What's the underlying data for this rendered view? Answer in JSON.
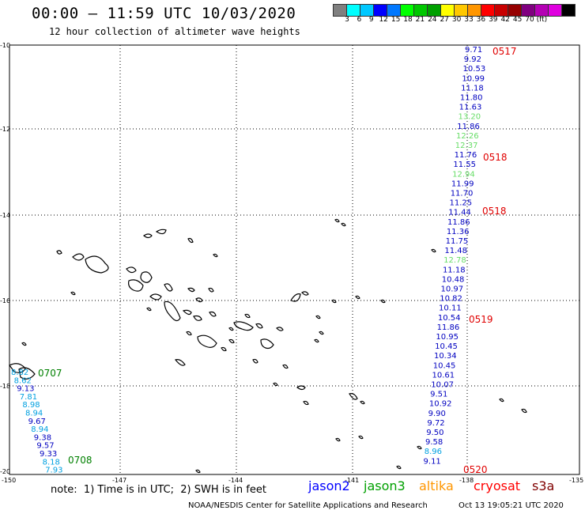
{
  "title": "00:00 – 11:59 UTC 10/03/2020",
  "subtitle": "12 hour collection of altimeter wave heights",
  "colorbar": {
    "colors": [
      "#808080",
      "#00ffff",
      "#00c8ff",
      "#0000ff",
      "#0078ff",
      "#00ff00",
      "#00c800",
      "#00a000",
      "#ffff00",
      "#ffc800",
      "#ff9600",
      "#ff0000",
      "#c80000",
      "#960000",
      "#800080",
      "#b400b4",
      "#e000e0",
      "#000000"
    ],
    "labels": [
      "3",
      "6",
      "9",
      "12",
      "15",
      "18",
      "21",
      "24",
      "27",
      "30",
      "33",
      "36",
      "39",
      "42",
      "45",
      "70",
      "(ft)"
    ]
  },
  "axes": {
    "lat_labels": [
      "-10",
      "-12",
      "-14",
      "-16",
      "-18",
      "-20"
    ],
    "lon_labels": [
      "-150",
      "-147",
      "-144",
      "-141",
      "-138",
      "-135"
    ]
  },
  "tracks": [
    {
      "name": "east-track",
      "values": [
        {
          "v": "9.71",
          "c": "#0000c0"
        },
        {
          "v": "9.92",
          "c": "#0000c0"
        },
        {
          "v": "10.53",
          "c": "#0000c0"
        },
        {
          "v": "10.99",
          "c": "#0000c0"
        },
        {
          "v": "11.18",
          "c": "#0000c0"
        },
        {
          "v": "11.80",
          "c": "#0000c0"
        },
        {
          "v": "11.63",
          "c": "#0000c0"
        },
        {
          "v": "13.20",
          "c": "#66dd66"
        },
        {
          "v": "11.86",
          "c": "#0000c0"
        },
        {
          "v": "12.26",
          "c": "#66dd66"
        },
        {
          "v": "12.37",
          "c": "#66dd66"
        },
        {
          "v": "11.76",
          "c": "#0000c0"
        },
        {
          "v": "11.55",
          "c": "#0000c0"
        },
        {
          "v": "12.94",
          "c": "#66dd66"
        },
        {
          "v": "11.99",
          "c": "#0000c0"
        },
        {
          "v": "11.70",
          "c": "#0000c0"
        },
        {
          "v": "11.25",
          "c": "#0000c0"
        },
        {
          "v": "11.44",
          "c": "#0000c0"
        },
        {
          "v": "11.86",
          "c": "#0000c0"
        },
        {
          "v": "11.36",
          "c": "#0000c0"
        },
        {
          "v": "11.75",
          "c": "#0000c0"
        },
        {
          "v": "11.48",
          "c": "#0000c0"
        },
        {
          "v": "12.78",
          "c": "#66dd66"
        },
        {
          "v": "11.18",
          "c": "#0000c0"
        },
        {
          "v": "10.48",
          "c": "#0000c0"
        },
        {
          "v": "10.97",
          "c": "#0000c0"
        },
        {
          "v": "10.82",
          "c": "#0000c0"
        },
        {
          "v": "10.11",
          "c": "#0000c0"
        },
        {
          "v": "10.54",
          "c": "#0000c0"
        },
        {
          "v": "11.86",
          "c": "#0000c0"
        },
        {
          "v": "10.95",
          "c": "#0000c0"
        },
        {
          "v": "10.45",
          "c": "#0000c0"
        },
        {
          "v": "10.34",
          "c": "#0000c0"
        },
        {
          "v": "10.45",
          "c": "#0000c0"
        },
        {
          "v": "10.61",
          "c": "#0000c0"
        },
        {
          "v": "10.07",
          "c": "#0000c0"
        },
        {
          "v": "9.51",
          "c": "#0000c0"
        },
        {
          "v": "10.92",
          "c": "#0000c0"
        },
        {
          "v": "9.90",
          "c": "#0000c0"
        },
        {
          "v": "9.72",
          "c": "#0000c0"
        },
        {
          "v": "9.50",
          "c": "#0000c0"
        },
        {
          "v": "9.58",
          "c": "#0000c0"
        },
        {
          "v": "8.96",
          "c": "#00a0e0"
        },
        {
          "v": "9.11",
          "c": "#0000c0"
        }
      ]
    },
    {
      "name": "west-track",
      "values": [
        {
          "v": "8.82",
          "c": "#00a0e0"
        },
        {
          "v": "8.62",
          "c": "#00a0e0"
        },
        {
          "v": "9.13",
          "c": "#0000c0"
        },
        {
          "v": "7.81",
          "c": "#00a0e0"
        },
        {
          "v": "8.98",
          "c": "#00a0e0"
        },
        {
          "v": "8.94",
          "c": "#00a0e0"
        },
        {
          "v": "9.67",
          "c": "#0000c0"
        },
        {
          "v": "8.94",
          "c": "#00a0e0"
        },
        {
          "v": "9.38",
          "c": "#0000c0"
        },
        {
          "v": "9.57",
          "c": "#0000c0"
        },
        {
          "v": "9.33",
          "c": "#0000c0"
        },
        {
          "v": "8.18",
          "c": "#00a0e0"
        },
        {
          "v": "7.93",
          "c": "#00a0e0"
        }
      ]
    }
  ],
  "pass_times": [
    {
      "t": "0517",
      "c": "#e00000"
    },
    {
      "t": "0518",
      "c": "#e00000"
    },
    {
      "t": "0518",
      "c": "#e00000"
    },
    {
      "t": "0519",
      "c": "#e00000"
    },
    {
      "t": "0520",
      "c": "#e00000"
    },
    {
      "t": "0707",
      "c": "#008000"
    },
    {
      "t": "0708",
      "c": "#008000"
    }
  ],
  "note": "note:  1) Time is in UTC;  2) SWH is in feet",
  "satellites": [
    {
      "name": "jason2",
      "color": "#0000ff"
    },
    {
      "name": "jason3",
      "color": "#00a000"
    },
    {
      "name": "altika",
      "color": "#ff9600"
    },
    {
      "name": "cryosat",
      "color": "#ff0000"
    },
    {
      "name": "s3a",
      "color": "#800000"
    }
  ],
  "footer_left": "NOAA/NESDIS Center for Satellite Applications and Research",
  "footer_right": "Oct 13 19:05:21 UTC 2020"
}
